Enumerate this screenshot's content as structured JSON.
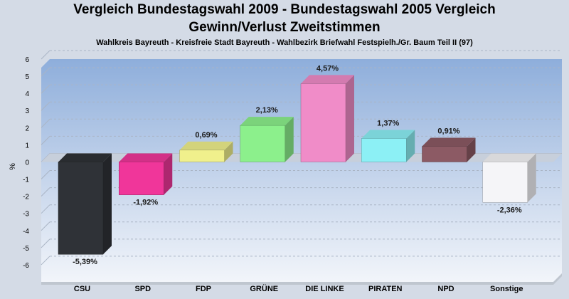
{
  "title": "Vergleich Bundestagswahl 2009 - Bundestagswahl 2005 Vergleich",
  "title2": "Gewinn/Verlust Zweitstimmen",
  "subtitle": "Wahlkreis Bayreuth - Kreisfreie Stadt Bayreuth - Wahlbezirk Briefwahl Festspielh./Gr. Baum Teil II (97)",
  "chart_data": {
    "type": "bar",
    "title": "Vergleich Bundestagswahl 2009 - Bundestagswahl 2005 Vergleich",
    "subtitle": "Gewinn/Verlust Zweitstimmen",
    "ylabel": "%",
    "xlabel": "",
    "ylim": [
      -7,
      6
    ],
    "yticks": [
      6,
      5,
      4,
      3,
      2,
      1,
      0,
      -1,
      -2,
      -3,
      -4,
      -5,
      -6
    ],
    "grid": true,
    "categories": [
      "CSU",
      "SPD",
      "FDP",
      "GRÜNE",
      "DIE LINKE",
      "PIRATEN",
      "NPD",
      "Sonstige"
    ],
    "values": [
      -5.39,
      -1.92,
      0.69,
      2.13,
      4.57,
      1.37,
      0.91,
      -2.36
    ],
    "labels": [
      "-5,39%",
      "-1,92%",
      "0,69%",
      "2,13%",
      "4,57%",
      "1,37%",
      "0,91%",
      "-2,36%"
    ],
    "colors": [
      "#2f3237",
      "#f0369a",
      "#f0f08c",
      "#8cf08c",
      "#f08cc8",
      "#8cf0f5",
      "#8c5a64",
      "#f5f5f8"
    ]
  }
}
